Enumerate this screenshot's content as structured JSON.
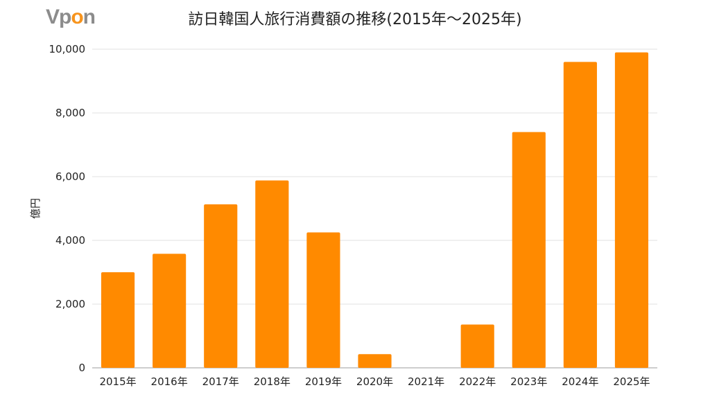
{
  "logo": {
    "text_prefix": "Vp",
    "text_accent": "o",
    "text_suffix": "n",
    "primary_color": "#8c8c8c",
    "accent_color": "#f7941d"
  },
  "chart_data": {
    "type": "bar",
    "title": "訪日韓国人旅行消費額の推移(2015年～2025年)",
    "xlabel": "",
    "ylabel": "億円",
    "categories": [
      "2015年",
      "2016年",
      "2017年",
      "2018年",
      "2019年",
      "2020年",
      "2021年",
      "2022年",
      "2023年",
      "2024年",
      "2025年"
    ],
    "values": [
      3000,
      3580,
      5130,
      5880,
      4250,
      430,
      0,
      1360,
      7400,
      9600,
      9900
    ],
    "ylim": [
      0,
      10000
    ],
    "yticks": [
      0,
      2000,
      4000,
      6000,
      8000,
      10000
    ],
    "ytick_labels": [
      "0",
      "2,000",
      "4,000",
      "6,000",
      "8,000",
      "10,000"
    ],
    "bar_color": "#ff8a00",
    "grid": true,
    "legend": "none"
  }
}
